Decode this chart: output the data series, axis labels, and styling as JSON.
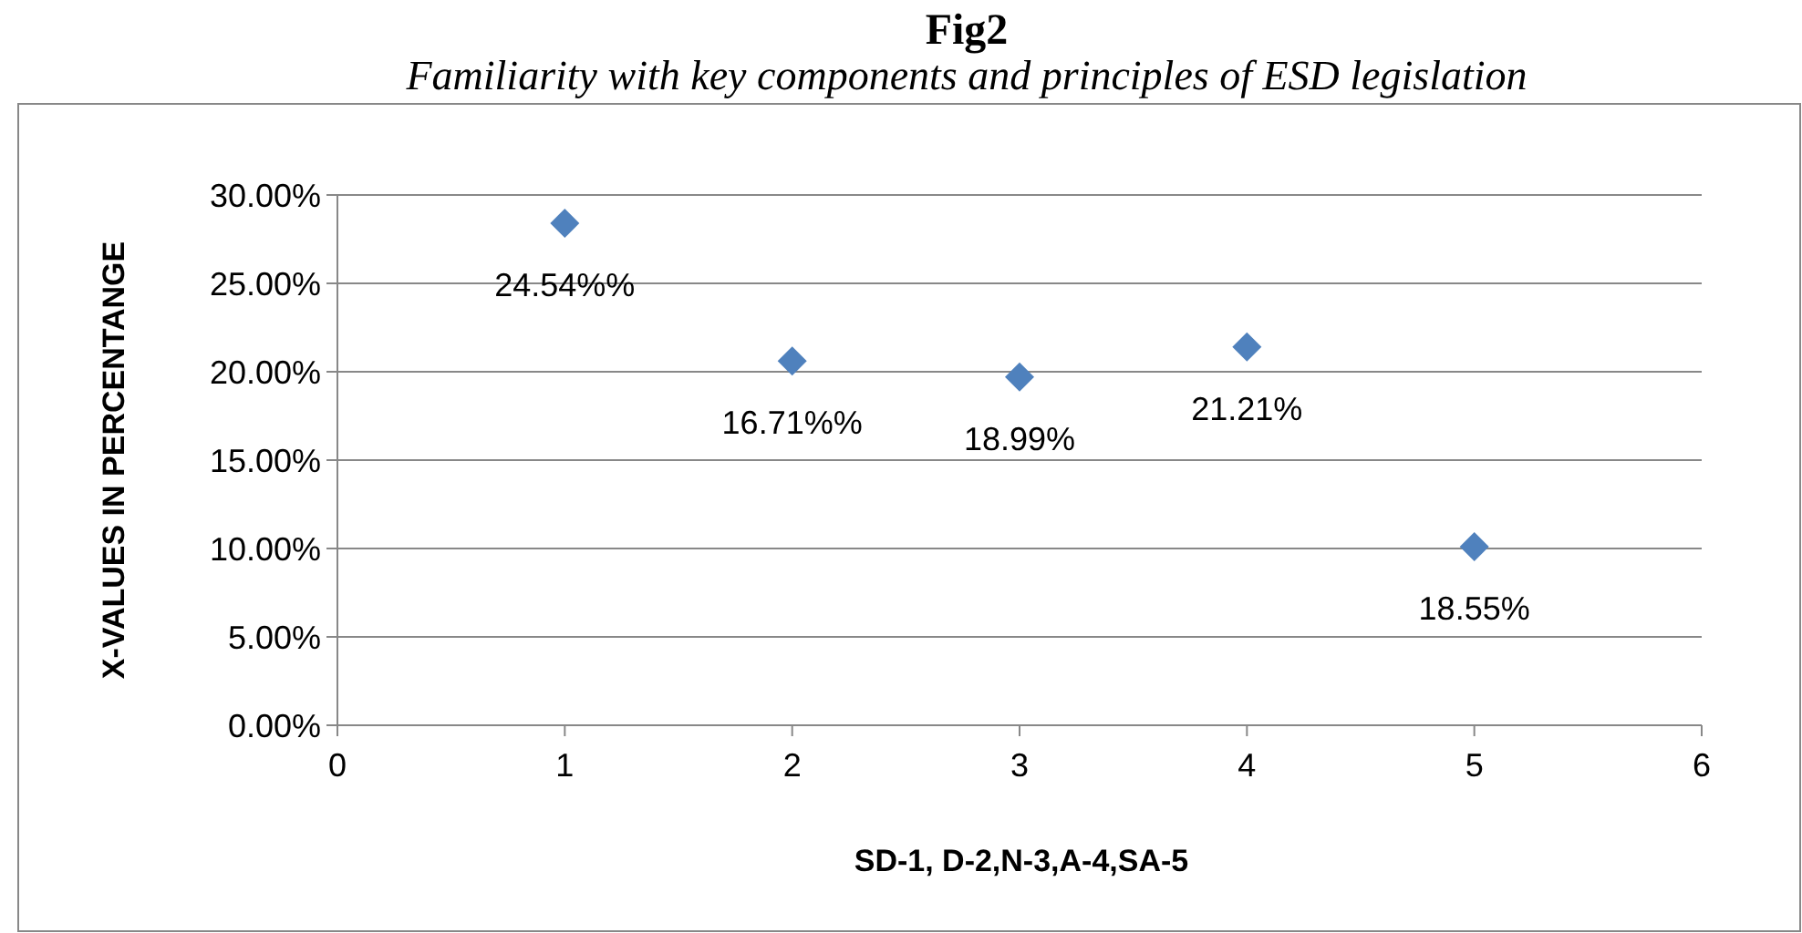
{
  "chart_data": {
    "type": "scatter",
    "title": "Fig2",
    "subtitle": "Familiarity with key components and principles of ESD legislation",
    "xlabel": "SD-1, D-2,N-3,A-4,SA-5",
    "ylabel": "X-VALUES IN PERCENTANGE",
    "x": [
      1,
      2,
      3,
      4,
      5
    ],
    "series": [
      {
        "color": "#4f81bd",
        "values": [
          28.4,
          20.6,
          19.7,
          21.4,
          10.1
        ]
      }
    ],
    "annotations": [
      "24.54%%",
      "16.71%%",
      "18.99%",
      "21.21%",
      "18.55%"
    ],
    "xlim": [
      0,
      6
    ],
    "xticks": [
      0,
      1,
      2,
      3,
      4,
      5,
      6
    ],
    "ylim": [
      0,
      30
    ],
    "yticks": [
      {
        "value": 0,
        "label": "0.00%"
      },
      {
        "value": 5,
        "label": "5.00%"
      },
      {
        "value": 10,
        "label": "10.00%"
      },
      {
        "value": 15,
        "label": "15.00%"
      },
      {
        "value": 20,
        "label": "20.00%"
      },
      {
        "value": 25,
        "label": "25.00%"
      },
      {
        "value": 30,
        "label": "30.00%"
      }
    ],
    "grid": "y",
    "marker": "diamond"
  }
}
